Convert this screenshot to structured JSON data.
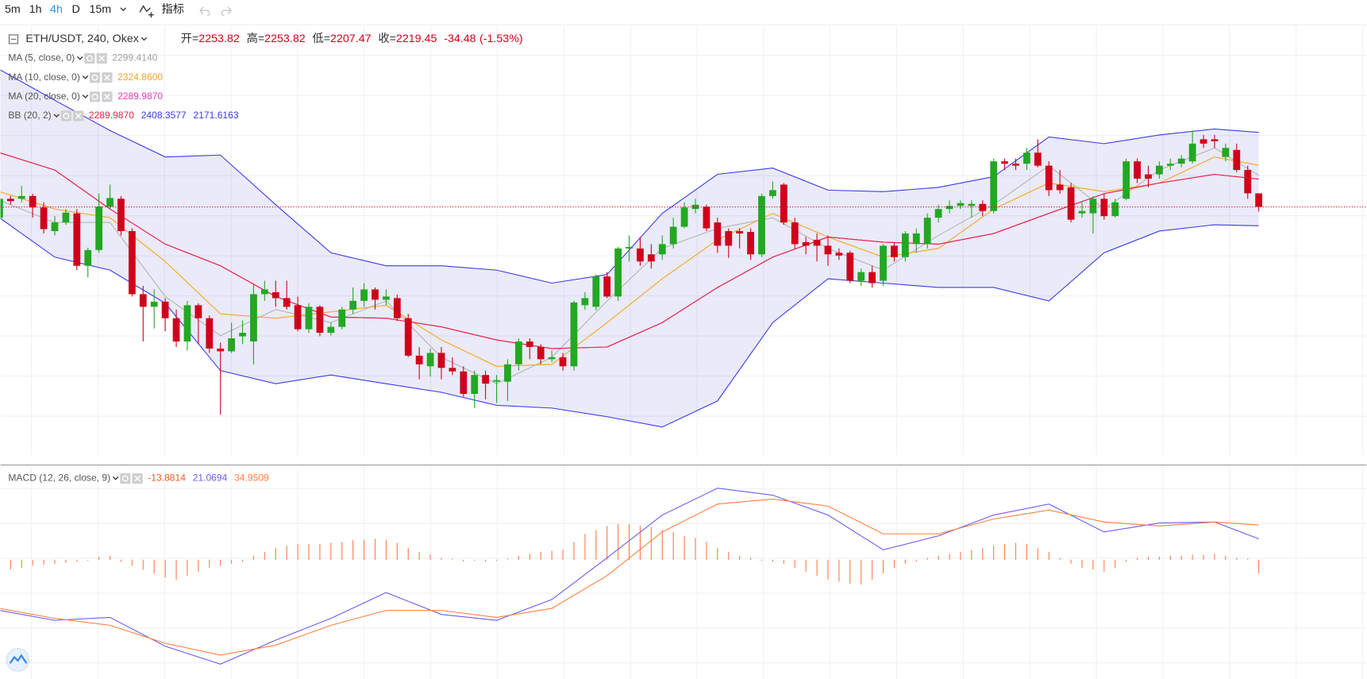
{
  "toolbar": {
    "intervals": [
      "5m",
      "1h",
      "4h",
      "D",
      "15m"
    ],
    "active_interval": "4h",
    "indicators_label": "指标"
  },
  "chart_data": [
    {
      "type": "candlestick",
      "symbol": "ETH/USDT, 240, Okex",
      "ohlc_labels": [
        "开=",
        "高=",
        "低=",
        "收="
      ],
      "change": -34.48,
      "change_pct_label": "(-1.53%)",
      "up_color": "#22a822",
      "down_color": "#d0021b",
      "xlim": [
        0,
        124
      ],
      "ylim": [
        1590,
        2678
      ],
      "open": [
        2192,
        2240,
        2240,
        2247,
        2218,
        2158,
        2180,
        2203,
        2070,
        2110,
        2220,
        2240,
        2158,
        1998,
        1966,
        1979,
        1937,
        1878,
        1970,
        1937,
        1860,
        1853,
        1891,
        1878,
        1998,
        2003,
        1988,
        1970,
        1909,
        1966,
        1900,
        1915,
        1959,
        1981,
        2010,
        1984,
        1988,
        1937,
        1842,
        1815,
        1849,
        1811,
        1802,
        1745,
        1793,
        1776,
        1776,
        1820,
        1878,
        1864,
        1833,
        1838,
        1815,
        1970,
        1966,
        2043,
        1992,
        2114,
        2114,
        2099,
        2099,
        2125,
        2169,
        2214,
        2220,
        2180,
        2158,
        2158,
        2156,
        2099,
        2247,
        2276,
        2180,
        2130,
        2136,
        2121,
        2103,
        2103,
        2032,
        2054,
        2032,
        2121,
        2092,
        2125,
        2125,
        2192,
        2214,
        2222,
        2222,
        2227,
        2209,
        2335,
        2329,
        2329,
        2357,
        2324,
        2276,
        2269,
        2203,
        2203,
        2240,
        2196,
        2240,
        2335,
        2302,
        2302,
        2324,
        2329,
        2335,
        2391,
        2391,
        2346,
        2364,
        2313,
        2253.82
      ],
      "high": [
        2247,
        2247,
        2273,
        2253,
        2231,
        2196,
        2214,
        2214,
        2116,
        2253,
        2276,
        2247,
        2165,
        2019,
        2010,
        1988,
        1959,
        1981,
        1975,
        1944,
        1875,
        1926,
        1931,
        2026,
        2032,
        2032,
        2032,
        1992,
        1975,
        1970,
        1926,
        1966,
        2015,
        2026,
        2015,
        2010,
        1997,
        1948,
        1864,
        1860,
        1864,
        1838,
        1815,
        1804,
        1804,
        1793,
        1833,
        1886,
        1886,
        1871,
        1855,
        1849,
        1981,
        2003,
        2048,
        2054,
        2118,
        2147,
        2143,
        2125,
        2147,
        2192,
        2231,
        2240,
        2225,
        2192,
        2165,
        2165,
        2165,
        2253,
        2284,
        2280,
        2192,
        2143,
        2152,
        2147,
        2114,
        2108,
        2063,
        2070,
        2125,
        2130,
        2158,
        2165,
        2203,
        2225,
        2236,
        2236,
        2236,
        2236,
        2342,
        2342,
        2342,
        2369,
        2391,
        2335,
        2313,
        2280,
        2231,
        2247,
        2253,
        2240,
        2342,
        2342,
        2324,
        2335,
        2342,
        2351,
        2413,
        2402,
        2402,
        2380,
        2380,
        2324,
        2253.82
      ],
      "low": [
        2187,
        2225,
        2231,
        2192,
        2152,
        2147,
        2174,
        2059,
        2041,
        2103,
        2214,
        2147,
        1992,
        1878,
        1911,
        1904,
        1864,
        1855,
        1871,
        1849,
        1692,
        1849,
        1871,
        1820,
        1981,
        1966,
        1959,
        1904,
        1900,
        1891,
        1893,
        1909,
        1948,
        1966,
        1959,
        1970,
        1930,
        1838,
        1782,
        1789,
        1782,
        1793,
        1738,
        1709,
        1731,
        1722,
        1727,
        1804,
        1833,
        1820,
        1826,
        1804,
        1804,
        1959,
        1957,
        1988,
        1981,
        2081,
        2070,
        2063,
        2085,
        2114,
        2165,
        2203,
        2158,
        2103,
        2090,
        2114,
        2085,
        2092,
        2240,
        2174,
        2114,
        2099,
        2081,
        2070,
        2085,
        2026,
        2019,
        2015,
        2019,
        2081,
        2081,
        2103,
        2114,
        2180,
        2203,
        2214,
        2192,
        2196,
        2203,
        2313,
        2313,
        2313,
        2320,
        2247,
        2253,
        2180,
        2192,
        2152,
        2187,
        2192,
        2236,
        2280,
        2269,
        2291,
        2313,
        2320,
        2329,
        2369,
        2369,
        2335,
        2307,
        2240,
        2207.47
      ],
      "close": [
        2240,
        2234,
        2247,
        2218,
        2163,
        2180,
        2205,
        2070,
        2110,
        2220,
        2242,
        2158,
        1998,
        1966,
        1979,
        1937,
        1878,
        1970,
        1937,
        1860,
        1853,
        1886,
        1900,
        1998,
        2010,
        1988,
        1966,
        1909,
        1966,
        1900,
        1915,
        1959,
        1981,
        2010,
        1984,
        1992,
        1937,
        1842,
        1820,
        1849,
        1811,
        1802,
        1745,
        1793,
        1771,
        1780,
        1820,
        1878,
        1864,
        1833,
        1838,
        1815,
        1977,
        1988,
        2043,
        1992,
        2114,
        2118,
        2081,
        2081,
        2125,
        2169,
        2218,
        2225,
        2165,
        2121,
        2121,
        2152,
        2099,
        2247,
        2262,
        2180,
        2125,
        2121,
        2121,
        2099,
        2096,
        2032,
        2054,
        2026,
        2121,
        2092,
        2152,
        2152,
        2192,
        2214,
        2222,
        2229,
        2227,
        2209,
        2335,
        2329,
        2324,
        2357,
        2324,
        2262,
        2262,
        2187,
        2209,
        2240,
        2196,
        2231,
        2335,
        2291,
        2291,
        2324,
        2329,
        2342,
        2380,
        2380,
        2386,
        2369,
        2313,
        2253.93,
        2219.45
      ],
      "overlay_x": [
        0,
        5,
        10,
        15,
        20,
        25,
        30,
        35,
        40,
        45,
        50,
        55,
        60,
        65,
        70,
        75,
        80,
        85,
        90,
        95,
        100,
        105,
        110,
        114
      ],
      "band_fill": "rgba(90,90,200,0.13)",
      "indicators": [
        {
          "name": "MA (5, close, 0)",
          "lines": [
            {
              "color": "#b4b4b4",
              "legend_value": "2299.4140",
              "values": [
                2236,
                2180,
                2180,
                1992,
                1893,
                1959,
                1926,
                1981,
                1838,
                1771,
                1838,
                1981,
                2114,
                2165,
                2192,
                2114,
                2059,
                2147,
                2225,
                2324,
                2214,
                2313,
                2369,
                2299.414
              ]
            }
          ]
        },
        {
          "name": "MA (10, close, 0)",
          "lines": [
            {
              "color": "#f5a623",
              "legend_value": "2324.8600",
              "values": [
                2258,
                2214,
                2192,
                2081,
                1948,
                1937,
                1953,
                1970,
                1882,
                1815,
                1820,
                1926,
                2037,
                2136,
                2203,
                2143,
                2092,
                2114,
                2214,
                2280,
                2258,
                2280,
                2346,
                2324.86
              ]
            }
          ]
        },
        {
          "name": "MA (20, close, 0)",
          "lines": [
            {
              "color": "#e040b8",
              "legend_value": "2289.9870",
              "values": [
                2357,
                2313,
                2214,
                2125,
                2070,
                1992,
                1940,
                1937,
                1915,
                1882,
                1860,
                1864,
                1926,
                2015,
                2092,
                2143,
                2130,
                2125,
                2152,
                2203,
                2253,
                2280,
                2302,
                2289.987
              ]
            }
          ]
        },
        {
          "name": "BB (20, 2)",
          "lines": [
            {
              "color": "#e8264a",
              "legend_value": "2289.9870",
              "values": [
                2357,
                2313,
                2214,
                2125,
                2070,
                1992,
                1940,
                1937,
                1915,
                1882,
                1860,
                1864,
                1926,
                2015,
                2092,
                2143,
                2130,
                2125,
                2152,
                2203,
                2253,
                2280,
                2302,
                2289.987
              ]
            },
            {
              "color": "#3b3be6",
              "values": [
                2568,
                2490,
                2413,
                2346,
                2351,
                2225,
                2103,
                2070,
                2070,
                2059,
                2026,
                2048,
                2203,
                2302,
                2318,
                2262,
                2258,
                2269,
                2296,
                2397,
                2380,
                2402,
                2417,
                2408.3577
              ]
            },
            {
              "color": "#3b3be6",
              "values": [
                2192,
                2092,
                2059,
                1975,
                1804,
                1771,
                1793,
                1771,
                1749,
                1716,
                1709,
                1687,
                1661,
                1727,
                1926,
                2037,
                2026,
                2015,
                2015,
                1981,
                2103,
                2158,
                2174,
                2171.6163
              ]
            }
          ]
        }
      ]
    },
    {
      "type": "macd",
      "name": "MACD (12, 26, close, 9)",
      "xlim": [
        0,
        124
      ],
      "ylim": [
        -120,
        94
      ],
      "histogram": {
        "color": "#ff7b45",
        "values": [
          -12,
          -10,
          -8,
          -6,
          -5,
          -4,
          -3,
          -2,
          -1,
          3,
          4,
          -2,
          -6,
          -10,
          -14,
          -18,
          -20,
          -16,
          -12,
          -8,
          -6,
          -4,
          -2,
          4,
          8,
          12,
          14,
          16,
          16,
          16,
          17,
          18,
          20,
          20,
          21,
          20,
          17,
          12,
          8,
          5,
          2,
          1,
          -2,
          -1,
          -2,
          -1,
          1,
          4,
          6,
          8,
          9,
          10,
          18,
          26,
          30,
          34,
          36,
          36,
          34,
          33,
          30,
          28,
          24,
          22,
          18,
          12,
          8,
          4,
          2,
          -1,
          -2,
          -4,
          -8,
          -12,
          -16,
          -20,
          -22,
          -24,
          -25,
          -20,
          -14,
          -8,
          -4,
          -2,
          2,
          4,
          6,
          8,
          10,
          12,
          14,
          16,
          17,
          16,
          12,
          8,
          2,
          -4,
          -8,
          -10,
          -12,
          -8,
          -2,
          2,
          3,
          3,
          4,
          4,
          5,
          5,
          6,
          4,
          2,
          1,
          -13.8814
        ]
      },
      "lines": [
        {
          "color": "#6a5cf0",
          "values": [
            -51,
            -61,
            -58,
            -87,
            -105,
            -81,
            -59,
            -33,
            -55,
            -61,
            -40,
            2,
            45,
            72,
            65,
            45,
            10,
            24,
            45,
            56,
            28,
            37,
            38,
            21.0694
          ]
        },
        {
          "color": "#ff7f3f",
          "values": [
            -49,
            -59,
            -66,
            -84,
            -96,
            -86,
            -66,
            -51,
            -51,
            -58,
            -49,
            -16,
            28,
            56,
            61,
            54,
            26,
            26,
            41,
            50,
            38,
            34,
            38,
            34.9509
          ]
        }
      ]
    }
  ]
}
